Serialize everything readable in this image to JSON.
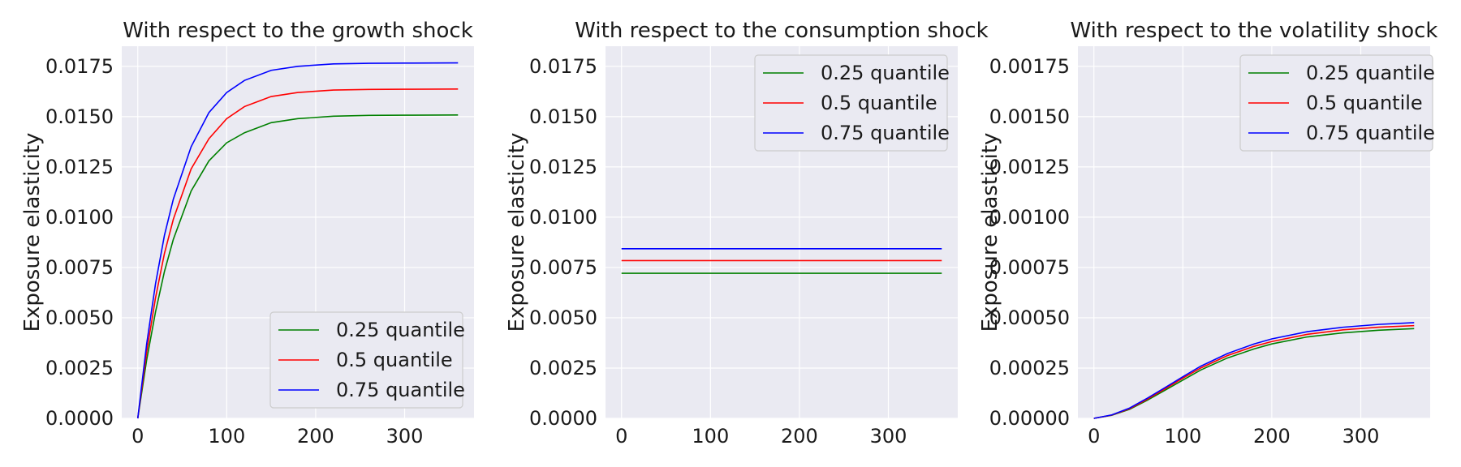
{
  "chart_data": [
    {
      "type": "line",
      "title": "With respect to the growth shock",
      "ylabel": "Exposure elasticity",
      "xlabel": "",
      "xlim": [
        -18,
        378
      ],
      "ylim": [
        0,
        0.0185
      ],
      "xticks": [
        0,
        100,
        200,
        300
      ],
      "xtick_labels": [
        "0",
        "100",
        "200",
        "300"
      ],
      "yticks": [
        0,
        0.0025,
        0.005,
        0.0075,
        0.01,
        0.0125,
        0.015,
        0.0175
      ],
      "ytick_labels": [
        "0.0000",
        "0.0025",
        "0.0050",
        "0.0075",
        "0.0100",
        "0.0125",
        "0.0150",
        "0.0175"
      ],
      "grid": true,
      "legend_position": "lower-right",
      "x": [
        0,
        10,
        20,
        30,
        40,
        60,
        80,
        100,
        120,
        150,
        180,
        220,
        260,
        300,
        360
      ],
      "series": [
        {
          "name": "0.25 quantile",
          "color": "#008000",
          "values": [
            0,
            0.0029,
            0.0053,
            0.0073,
            0.0089,
            0.0113,
            0.0128,
            0.0137,
            0.0142,
            0.0147,
            0.0149,
            0.01502,
            0.01506,
            0.01507,
            0.01508
          ]
        },
        {
          "name": "0.5 quantile",
          "color": "#ff0000",
          "values": [
            0,
            0.0033,
            0.006,
            0.0082,
            0.0099,
            0.0124,
            0.0139,
            0.0149,
            0.0155,
            0.016,
            0.0162,
            0.01632,
            0.01635,
            0.01636,
            0.01637
          ]
        },
        {
          "name": "0.75 quantile",
          "color": "#0000ff",
          "values": [
            0,
            0.0037,
            0.0067,
            0.0091,
            0.0109,
            0.0135,
            0.0152,
            0.0162,
            0.0168,
            0.0173,
            0.0175,
            0.01762,
            0.01765,
            0.01766,
            0.01767
          ]
        }
      ]
    },
    {
      "type": "line",
      "title": "With respect to the consumption shock",
      "ylabel": "Exposure elasticity",
      "xlabel": "",
      "xlim": [
        -18,
        378
      ],
      "ylim": [
        0,
        0.0185
      ],
      "xticks": [
        0,
        100,
        200,
        300
      ],
      "xtick_labels": [
        "0",
        "100",
        "200",
        "300"
      ],
      "yticks": [
        0,
        0.0025,
        0.005,
        0.0075,
        0.01,
        0.0125,
        0.015,
        0.0175
      ],
      "ytick_labels": [
        "0.0000",
        "0.0025",
        "0.0050",
        "0.0075",
        "0.0100",
        "0.0125",
        "0.0150",
        "0.0175"
      ],
      "grid": true,
      "legend_position": "upper-right",
      "x": [
        0,
        360
      ],
      "series": [
        {
          "name": "0.25 quantile",
          "color": "#008000",
          "values": [
            0.00721,
            0.00721
          ]
        },
        {
          "name": "0.5 quantile",
          "color": "#ff0000",
          "values": [
            0.00784,
            0.00784
          ]
        },
        {
          "name": "0.75 quantile",
          "color": "#0000ff",
          "values": [
            0.00843,
            0.00843
          ]
        }
      ]
    },
    {
      "type": "line",
      "title": "With respect to the volatility shock",
      "ylabel": "Exposure elasticity",
      "xlabel": "",
      "xlim": [
        -18,
        378
      ],
      "ylim": [
        0,
        0.00185
      ],
      "xticks": [
        0,
        100,
        200,
        300
      ],
      "xtick_labels": [
        "0",
        "100",
        "200",
        "300"
      ],
      "yticks": [
        0,
        0.00025,
        0.0005,
        0.00075,
        0.001,
        0.00125,
        0.0015,
        0.00175
      ],
      "ytick_labels": [
        "0.00000",
        "0.00025",
        "0.00050",
        "0.00075",
        "0.00100",
        "0.00125",
        "0.00150",
        "0.00175"
      ],
      "grid": true,
      "legend_position": "upper-right",
      "x": [
        0,
        20,
        40,
        60,
        80,
        100,
        120,
        150,
        180,
        200,
        240,
        280,
        320,
        360
      ],
      "series": [
        {
          "name": "0.25 quantile",
          "color": "#008000",
          "values": [
            0,
            1.5e-05,
            4.5e-05,
            9e-05,
            0.00014,
            0.00019,
            0.00024,
            0.0003,
            0.000345,
            0.00037,
            0.000405,
            0.000425,
            0.000438,
            0.000446
          ]
        },
        {
          "name": "0.5 quantile",
          "color": "#ff0000",
          "values": [
            0,
            1.6e-05,
            4.8e-05,
            9.5e-05,
            0.000147,
            0.0002,
            0.00025,
            0.000312,
            0.000358,
            0.000382,
            0.000418,
            0.00044,
            0.000453,
            0.000461
          ]
        },
        {
          "name": "0.75 quantile",
          "color": "#0000ff",
          "values": [
            0,
            1.7e-05,
            5.1e-05,
            0.0001,
            0.000153,
            0.000207,
            0.000259,
            0.000322,
            0.00037,
            0.000395,
            0.000431,
            0.000453,
            0.000467,
            0.000476
          ]
        }
      ]
    }
  ]
}
